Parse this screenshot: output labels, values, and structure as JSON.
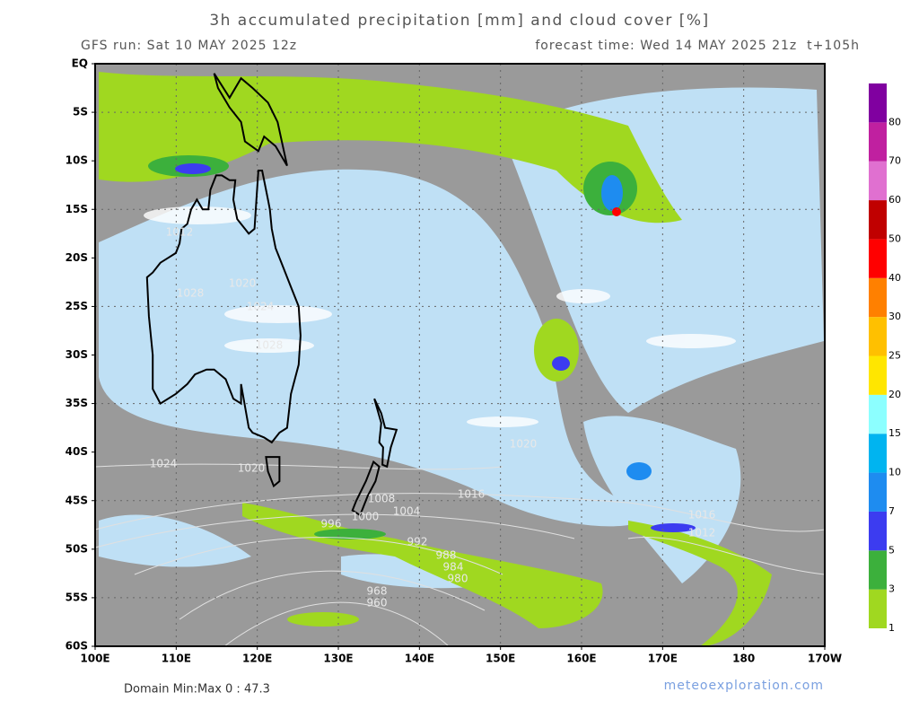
{
  "header": {
    "title": "3h accumulated precipitation [mm] and cloud cover [%]",
    "run": "GFS run: Sat 10 MAY 2025 12z",
    "forecast": "forecast time: Wed 14 MAY 2025 21z  t+105h"
  },
  "map": {
    "lat_labels": [
      "EQ",
      "5S",
      "10S",
      "15S",
      "20S",
      "25S",
      "30S",
      "35S",
      "40S",
      "45S",
      "50S",
      "55S",
      "60S"
    ],
    "lon_labels": [
      "100E",
      "110E",
      "120E",
      "130E",
      "140E",
      "150E",
      "160E",
      "170E",
      "180",
      "170W"
    ],
    "isobar_labels": [
      "1012",
      "1024",
      "1028",
      "1020",
      "1028",
      "1024",
      "1020",
      "1016",
      "1008",
      "1004",
      "1000",
      "996",
      "992",
      "988",
      "984",
      "980",
      "968",
      "960",
      "1016",
      "1012",
      "1020"
    ]
  },
  "colorbar": {
    "labels": [
      1,
      3,
      5,
      7,
      10,
      15,
      20,
      25,
      30,
      40,
      50,
      60,
      70,
      80
    ],
    "colors": [
      "#a0d820",
      "#3cb03c",
      "#3c3cf0",
      "#1e8cf0",
      "#00b4f0",
      "#8cffff",
      "#ffe600",
      "#ffc000",
      "#ff8000",
      "#ff0000",
      "#c00000",
      "#e070d0",
      "#c020a0",
      "#8000a0"
    ]
  },
  "footer": {
    "domain": "Domain Min:Max 0 : 47.3",
    "credit": "meteoexploration.com"
  }
}
